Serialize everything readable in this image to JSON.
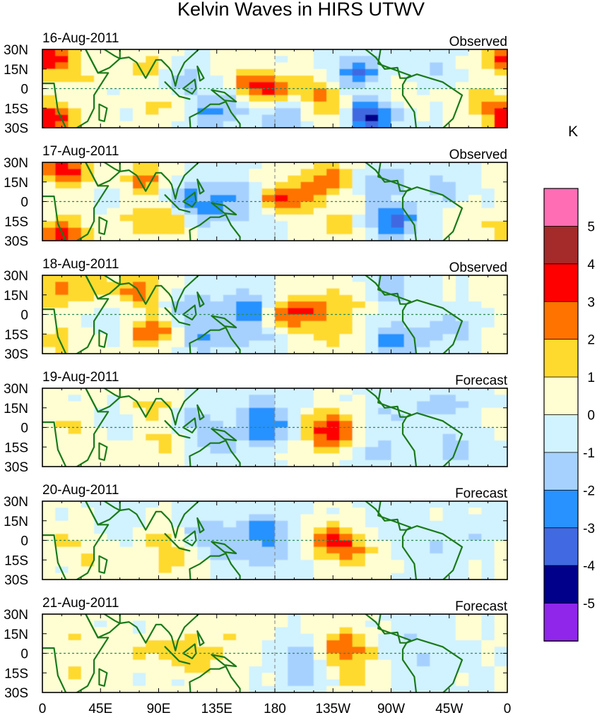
{
  "title": "Kelvin Waves in HIRS UTWV",
  "colorbar": {
    "unit": "K",
    "labels": [
      "5",
      "4",
      "3",
      "2",
      "1",
      "0",
      "-1",
      "-2",
      "-3",
      "-4",
      "-5"
    ],
    "colors": [
      "#ff6eb4",
      "#a52a2a",
      "#ff0000",
      "#ff7300",
      "#ffda2e",
      "#fffed2",
      "#d1f2ff",
      "#a6d1ff",
      "#2892ff",
      "#4169e1",
      "#00008b",
      "#8f26e9"
    ]
  },
  "lat_labels": [
    "30N",
    "15N",
    "0",
    "15S",
    "30S"
  ],
  "lon_labels": [
    "0",
    "45E",
    "90E",
    "135E",
    "180",
    "135W",
    "90W",
    "45W",
    "0"
  ],
  "panels": [
    {
      "date": "16-Aug-2011",
      "kind": "Observed"
    },
    {
      "date": "17-Aug-2011",
      "kind": "Observed"
    },
    {
      "date": "18-Aug-2011",
      "kind": "Observed"
    },
    {
      "date": "19-Aug-2011",
      "kind": "Forecast"
    },
    {
      "date": "20-Aug-2011",
      "kind": "Forecast"
    },
    {
      "date": "21-Aug-2011",
      "kind": "Forecast"
    }
  ],
  "anomaly_blobs": [
    [
      {
        "lon": 5,
        "lat": 24,
        "v": 4
      },
      {
        "lon": 5,
        "lat": -24,
        "v": 4
      },
      {
        "lon": 30,
        "lat": 10,
        "v": 1
      },
      {
        "lon": 80,
        "lat": 15,
        "v": 1.5
      },
      {
        "lon": 95,
        "lat": -12,
        "v": 1.5
      },
      {
        "lon": 110,
        "lat": 5,
        "v": -2
      },
      {
        "lon": 130,
        "lat": -20,
        "v": -2
      },
      {
        "lon": 150,
        "lat": -5,
        "v": -1.5
      },
      {
        "lon": 155,
        "lat": 5,
        "v": 1.5
      },
      {
        "lon": 172,
        "lat": 0,
        "v": 3.5
      },
      {
        "lon": 185,
        "lat": -20,
        "v": -2
      },
      {
        "lon": 210,
        "lat": 0,
        "v": 1.5
      },
      {
        "lon": 225,
        "lat": -15,
        "v": 2
      },
      {
        "lon": 245,
        "lat": 12,
        "v": -3
      },
      {
        "lon": 252,
        "lat": -20,
        "v": -4.5
      },
      {
        "lon": 270,
        "lat": 0,
        "v": 1
      },
      {
        "lon": 300,
        "lat": 15,
        "v": -1
      },
      {
        "lon": 340,
        "lat": -10,
        "v": 1.5
      }
    ],
    [
      {
        "lon": 18,
        "lat": 24,
        "v": 3.5
      },
      {
        "lon": 15,
        "lat": -25,
        "v": 3.5
      },
      {
        "lon": 60,
        "lat": 0,
        "v": -1
      },
      {
        "lon": 70,
        "lat": -12,
        "v": 1.5
      },
      {
        "lon": 80,
        "lat": 16,
        "v": 2.5
      },
      {
        "lon": 100,
        "lat": -15,
        "v": 2
      },
      {
        "lon": 110,
        "lat": 5,
        "v": -2
      },
      {
        "lon": 125,
        "lat": -10,
        "v": -2
      },
      {
        "lon": 150,
        "lat": 5,
        "v": -2
      },
      {
        "lon": 170,
        "lat": -10,
        "v": -1.5
      },
      {
        "lon": 182,
        "lat": 0,
        "v": 3.5
      },
      {
        "lon": 210,
        "lat": 10,
        "v": 1.5
      },
      {
        "lon": 225,
        "lat": 18,
        "v": 2
      },
      {
        "lon": 228,
        "lat": -18,
        "v": 1.5
      },
      {
        "lon": 262,
        "lat": 15,
        "v": -2
      },
      {
        "lon": 272,
        "lat": -15,
        "v": -3.5
      },
      {
        "lon": 310,
        "lat": 10,
        "v": -1.5
      },
      {
        "lon": 330,
        "lat": -15,
        "v": 1
      }
    ],
    [
      {
        "lon": 10,
        "lat": 18,
        "v": 2
      },
      {
        "lon": 15,
        "lat": -20,
        "v": 1.5
      },
      {
        "lon": 35,
        "lat": 22,
        "v": 1.5
      },
      {
        "lon": 55,
        "lat": -5,
        "v": -1
      },
      {
        "lon": 75,
        "lat": 18,
        "v": 2.5
      },
      {
        "lon": 85,
        "lat": -12,
        "v": 3
      },
      {
        "lon": 115,
        "lat": 5,
        "v": -2
      },
      {
        "lon": 125,
        "lat": -18,
        "v": -2
      },
      {
        "lon": 160,
        "lat": 5,
        "v": -3
      },
      {
        "lon": 165,
        "lat": -15,
        "v": -1.5
      },
      {
        "lon": 188,
        "lat": 0,
        "v": 3
      },
      {
        "lon": 210,
        "lat": 5,
        "v": 1.5
      },
      {
        "lon": 225,
        "lat": -15,
        "v": 1.5
      },
      {
        "lon": 238,
        "lat": 10,
        "v": 1.5
      },
      {
        "lon": 270,
        "lat": 18,
        "v": -2
      },
      {
        "lon": 275,
        "lat": -20,
        "v": -2.5
      },
      {
        "lon": 315,
        "lat": -10,
        "v": -1.5
      }
    ],
    [
      {
        "lon": 15,
        "lat": 5,
        "v": 1
      },
      {
        "lon": 40,
        "lat": -10,
        "v": 1
      },
      {
        "lon": 60,
        "lat": 0,
        "v": -1
      },
      {
        "lon": 85,
        "lat": 15,
        "v": 1.5
      },
      {
        "lon": 95,
        "lat": -10,
        "v": 1.5
      },
      {
        "lon": 115,
        "lat": 5,
        "v": -1.5
      },
      {
        "lon": 135,
        "lat": -12,
        "v": -1.5
      },
      {
        "lon": 172,
        "lat": 0,
        "v": -3
      },
      {
        "lon": 168,
        "lat": 18,
        "v": -1.5
      },
      {
        "lon": 220,
        "lat": 0,
        "v": 3
      },
      {
        "lon": 228,
        "lat": -12,
        "v": 1.5
      },
      {
        "lon": 255,
        "lat": -18,
        "v": -1.5
      },
      {
        "lon": 270,
        "lat": 10,
        "v": -1
      },
      {
        "lon": 310,
        "lat": 18,
        "v": -1.5
      },
      {
        "lon": 320,
        "lat": -15,
        "v": -1.5
      }
    ],
    [
      {
        "lon": 20,
        "lat": 0,
        "v": 1
      },
      {
        "lon": 45,
        "lat": -15,
        "v": 1
      },
      {
        "lon": 65,
        "lat": 10,
        "v": -1
      },
      {
        "lon": 92,
        "lat": 5,
        "v": 1.5
      },
      {
        "lon": 105,
        "lat": -15,
        "v": 1.5
      },
      {
        "lon": 120,
        "lat": 8,
        "v": -1.5
      },
      {
        "lon": 140,
        "lat": -8,
        "v": -1.5
      },
      {
        "lon": 172,
        "lat": 8,
        "v": -2.5
      },
      {
        "lon": 180,
        "lat": -12,
        "v": -1.5
      },
      {
        "lon": 225,
        "lat": 0,
        "v": 3
      },
      {
        "lon": 240,
        "lat": -10,
        "v": 1.5
      },
      {
        "lon": 270,
        "lat": 15,
        "v": -1
      },
      {
        "lon": 300,
        "lat": -10,
        "v": -1
      },
      {
        "lon": 330,
        "lat": 5,
        "v": -1
      }
    ],
    [
      {
        "lon": 25,
        "lat": 10,
        "v": 1
      },
      {
        "lon": 30,
        "lat": -15,
        "v": 1
      },
      {
        "lon": 75,
        "lat": 0,
        "v": 1
      },
      {
        "lon": 105,
        "lat": 5,
        "v": 1.5
      },
      {
        "lon": 125,
        "lat": -10,
        "v": 1
      },
      {
        "lon": 150,
        "lat": 10,
        "v": 1
      },
      {
        "lon": 200,
        "lat": 0,
        "v": -1.5
      },
      {
        "lon": 205,
        "lat": -18,
        "v": -1.5
      },
      {
        "lon": 232,
        "lat": 5,
        "v": 3
      },
      {
        "lon": 240,
        "lat": -15,
        "v": 1.5
      },
      {
        "lon": 285,
        "lat": 10,
        "v": -1
      },
      {
        "lon": 300,
        "lat": -12,
        "v": -1
      }
    ]
  ],
  "continents": [
    [
      [
        -17,
        21
      ],
      [
        -8,
        33
      ],
      [
        10,
        35
      ],
      [
        20,
        31
      ],
      [
        33,
        31
      ],
      [
        43,
        12
      ],
      [
        51,
        12
      ],
      [
        40,
        -5
      ],
      [
        40,
        -15
      ],
      [
        35,
        -25
      ],
      [
        20,
        -34
      ],
      [
        12,
        -17
      ],
      [
        9,
        4
      ],
      [
        -8,
        4
      ],
      [
        -17,
        14
      ]
    ],
    [
      [
        33,
        31
      ],
      [
        43,
        12
      ],
      [
        52,
        16
      ],
      [
        60,
        23
      ],
      [
        56,
        25
      ],
      [
        48,
        30
      ],
      [
        35,
        35
      ]
    ],
    [
      [
        60,
        23
      ],
      [
        67,
        24
      ],
      [
        73,
        20
      ],
      [
        80,
        8
      ],
      [
        88,
        22
      ],
      [
        92,
        22
      ],
      [
        98,
        16
      ],
      [
        100,
        13
      ],
      [
        103,
        2
      ],
      [
        105,
        10
      ],
      [
        110,
        20
      ],
      [
        121,
        30
      ],
      [
        122,
        35
      ],
      [
        60,
        35
      ]
    ],
    [
      [
        44,
        -12
      ],
      [
        50,
        -15
      ],
      [
        48,
        -25
      ],
      [
        44,
        -24
      ]
    ],
    [
      [
        114,
        -22
      ],
      [
        122,
        -18
      ],
      [
        130,
        -12
      ],
      [
        137,
        -12
      ],
      [
        142,
        -10
      ],
      [
        146,
        -18
      ],
      [
        153,
        -27
      ],
      [
        153,
        -35
      ],
      [
        115,
        -35
      ]
    ],
    [
      [
        95,
        5
      ],
      [
        105,
        -5
      ],
      [
        106,
        -6
      ],
      [
        100,
        0
      ]
    ],
    [
      [
        106,
        -6
      ],
      [
        114,
        -8
      ],
      [
        110,
        -7
      ]
    ],
    [
      [
        109,
        0
      ],
      [
        118,
        7
      ],
      [
        119,
        0
      ],
      [
        116,
        -4
      ]
    ],
    [
      [
        131,
        -1
      ],
      [
        141,
        -3
      ],
      [
        150,
        -10
      ],
      [
        141,
        -9
      ]
    ],
    [
      [
        120,
        17
      ],
      [
        125,
        8
      ],
      [
        122,
        6
      ]
    ],
    [
      [
        130,
        31
      ],
      [
        141,
        41
      ],
      [
        135,
        34
      ]
    ],
    [
      [
        249,
        31
      ],
      [
        258,
        24
      ],
      [
        265,
        15
      ],
      [
        275,
        16
      ],
      [
        277,
        8
      ],
      [
        282,
        8
      ],
      [
        285,
        10
      ],
      [
        260,
        19
      ],
      [
        262,
        31
      ]
    ],
    [
      [
        282,
        8
      ],
      [
        290,
        11
      ],
      [
        310,
        5
      ],
      [
        325,
        -5
      ],
      [
        318,
        -23
      ],
      [
        305,
        -35
      ],
      [
        290,
        -35
      ],
      [
        288,
        -18
      ],
      [
        279,
        -5
      ],
      [
        279,
        3
      ]
    ]
  ]
}
